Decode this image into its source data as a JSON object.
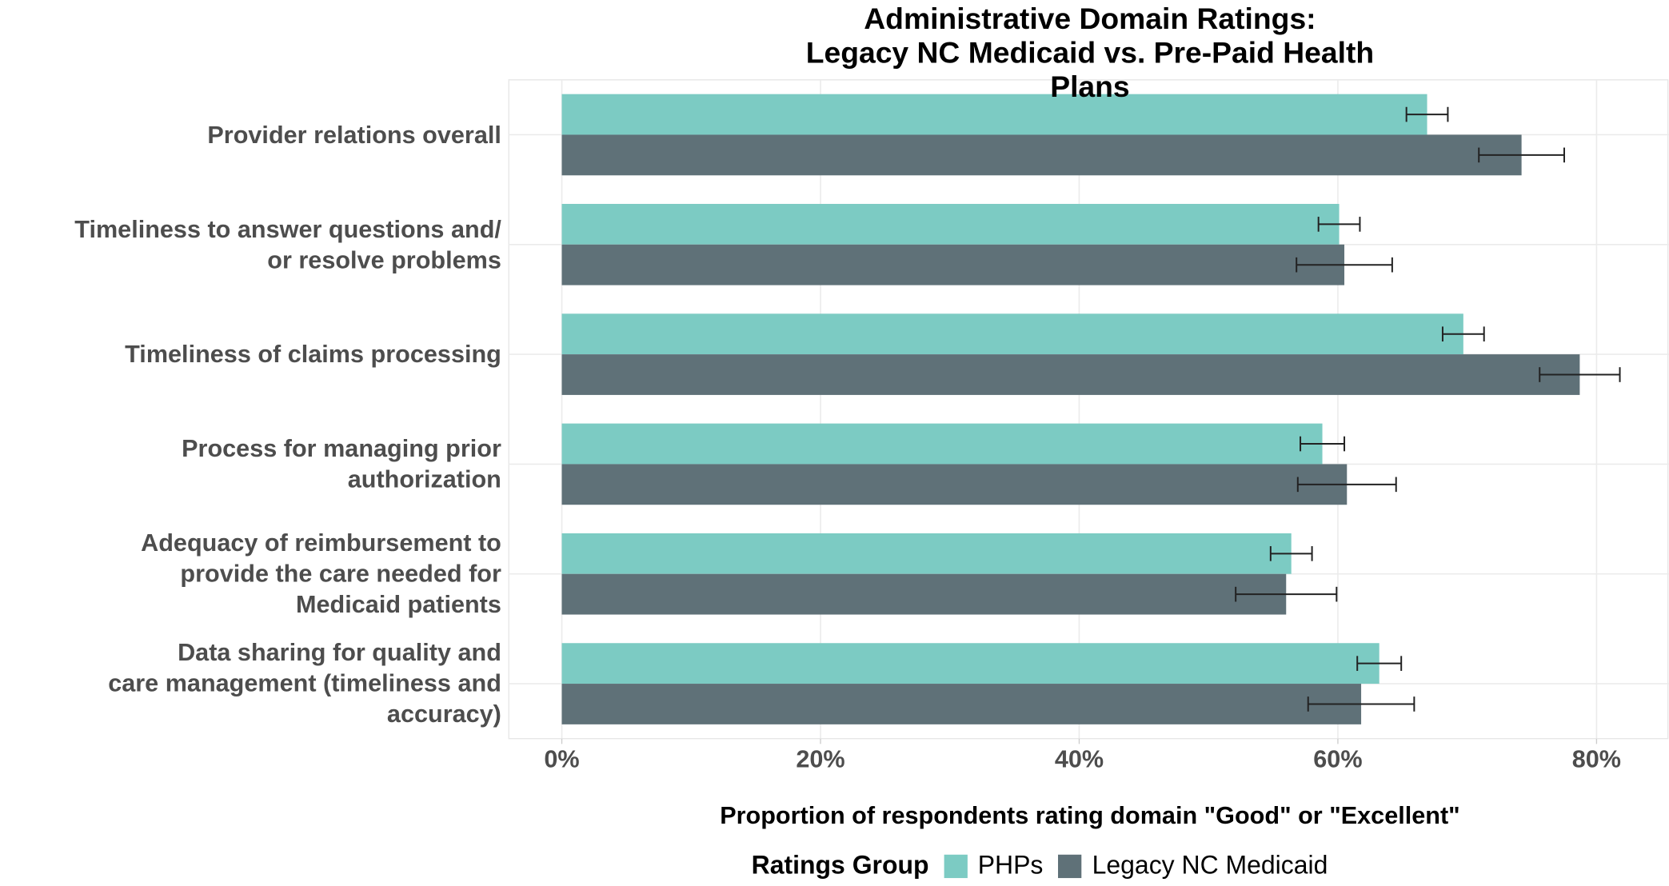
{
  "chart_data": {
    "type": "bar",
    "orientation": "horizontal",
    "title": "Administrative Domain Ratings:\nLegacy NC Medicaid vs. Pre-Paid Health Plans",
    "xlabel": "Proportion of respondents rating domain \"Good\" or \"Excellent\"",
    "legend_title": "Ratings Group",
    "legend_position": "bottom",
    "grid": true,
    "categories": [
      "Provider relations overall",
      "Timeliness to answer questions and/\nor resolve problems",
      "Timeliness of claims processing",
      "Process for managing prior\nauthorization",
      "Adequacy of reimbursement to\nprovide the care needed for\nMedicaid patients",
      "Data sharing for quality and\ncare management (timeliness and\naccuracy)"
    ],
    "series": [
      {
        "name": "PHPs",
        "color": "#7ccbc3",
        "values": [
          66.9,
          60.1,
          69.7,
          58.8,
          56.4,
          63.2
        ],
        "errors": [
          1.6,
          1.6,
          1.6,
          1.7,
          1.6,
          1.7
        ]
      },
      {
        "name": "Legacy NC Medicaid",
        "color": "#5f7178",
        "values": [
          74.2,
          60.5,
          78.7,
          60.7,
          56.0,
          61.8
        ],
        "errors": [
          3.3,
          3.7,
          3.1,
          3.8,
          3.9,
          4.1
        ]
      }
    ],
    "xlim": [
      -4.1,
      85.6
    ],
    "xticks": [
      {
        "value": 0,
        "label": "0%"
      },
      {
        "value": 20,
        "label": "20%"
      },
      {
        "value": 40,
        "label": "40%"
      },
      {
        "value": 60,
        "label": "60%"
      },
      {
        "value": 80,
        "label": "80%"
      }
    ]
  }
}
